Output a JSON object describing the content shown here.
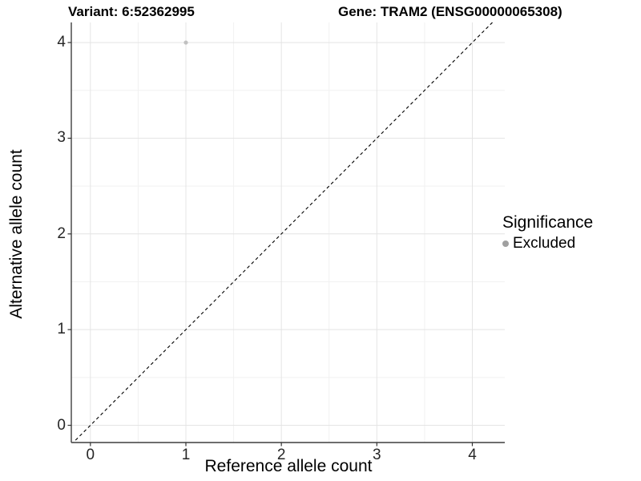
{
  "title": {
    "variant": "Variant: 6:52362995",
    "gene": "Gene: TRAM2 (ENSG00000065308)"
  },
  "axes": {
    "x_label": "Reference allele count",
    "y_label": "Alternative allele count"
  },
  "legend": {
    "title": "Significance",
    "items": [
      {
        "label": "Excluded",
        "color": "#a0a0a0"
      }
    ]
  },
  "colors": {
    "background": "#ffffff",
    "grid_major": "#e4e4e4",
    "grid_minor": "#f1f1f1",
    "axis_line": "#3f3f3f",
    "tick_mark": "#333333",
    "tick_label": "#262626",
    "reference_line": "#000000",
    "point": "#c1c1c1"
  },
  "chart_data": {
    "type": "scatter",
    "title": "Variant: 6:52362995    Gene: TRAM2 (ENSG00000065308)",
    "xlabel": "Reference allele count",
    "ylabel": "Alternative allele count",
    "xlim": [
      -0.2,
      4.34
    ],
    "ylim": [
      -0.18,
      4.21
    ],
    "x_ticks": [
      0,
      1,
      2,
      3,
      4
    ],
    "y_ticks": [
      0,
      1,
      2,
      3,
      4
    ],
    "minor_grid": true,
    "grid": true,
    "legend_position": "right",
    "reference_line": {
      "type": "identity",
      "style": "dashed",
      "color": "#000000"
    },
    "series": [
      {
        "name": "Excluded",
        "color": "#c1c1c1",
        "points": [
          {
            "x": 1,
            "y": 4
          }
        ]
      }
    ]
  }
}
